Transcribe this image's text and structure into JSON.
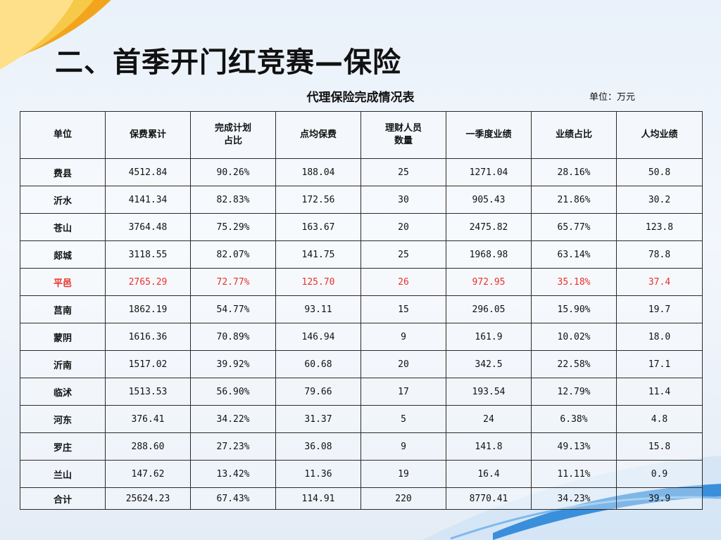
{
  "slide": {
    "title": "二、首季开门红竞赛—保险",
    "table_caption": "代理保险完成情况表",
    "unit_note": "单位：万元"
  },
  "colors": {
    "highlight": "#e8322a",
    "accent": "#f2a51c",
    "wave": "#1f7fd6"
  },
  "table": {
    "headers": [
      "单位",
      "保费累计",
      "完成计划\n占比",
      "点均保费",
      "理财人员\n数量",
      "一季度业绩",
      "业绩占比",
      "人均业绩"
    ],
    "rows": [
      [
        "费县",
        "4512.84",
        "90.26%",
        "188.04",
        "25",
        "1271.04",
        "28.16%",
        "50.8"
      ],
      [
        "沂水",
        "4141.34",
        "82.83%",
        "172.56",
        "30",
        "905.43",
        "21.86%",
        "30.2"
      ],
      [
        "苍山",
        "3764.48",
        "75.29%",
        "163.67",
        "20",
        "2475.82",
        "65.77%",
        "123.8"
      ],
      [
        "郯城",
        "3118.55",
        "82.07%",
        "141.75",
        "25",
        "1968.98",
        "63.14%",
        "78.8"
      ],
      [
        "平邑",
        "2765.29",
        "72.77%",
        "125.70",
        "26",
        "972.95",
        "35.18%",
        "37.4"
      ],
      [
        "莒南",
        "1862.19",
        "54.77%",
        "93.11",
        "15",
        "296.05",
        "15.90%",
        "19.7"
      ],
      [
        "蒙阴",
        "1616.36",
        "70.89%",
        "146.94",
        "9",
        "161.9",
        "10.02%",
        "18.0"
      ],
      [
        "沂南",
        "1517.02",
        "39.92%",
        "60.68",
        "20",
        "342.5",
        "22.58%",
        "17.1"
      ],
      [
        "临沭",
        "1513.53",
        "56.90%",
        "79.66",
        "17",
        "193.54",
        "12.79%",
        "11.4"
      ],
      [
        "河东",
        "376.41",
        "34.22%",
        "31.37",
        "5",
        "24",
        "6.38%",
        "4.8"
      ],
      [
        "罗庄",
        "288.60",
        "27.23%",
        "36.08",
        "9",
        "141.8",
        "49.13%",
        "15.8"
      ],
      [
        "兰山",
        "147.62",
        "13.42%",
        "11.36",
        "19",
        "16.4",
        "11.11%",
        "0.9"
      ],
      [
        "合计",
        "25624.23",
        "67.43%",
        "114.91",
        "220",
        "8770.41",
        "34.23%",
        "39.9"
      ]
    ],
    "highlight_row": "平邑",
    "total_row": "合计"
  }
}
